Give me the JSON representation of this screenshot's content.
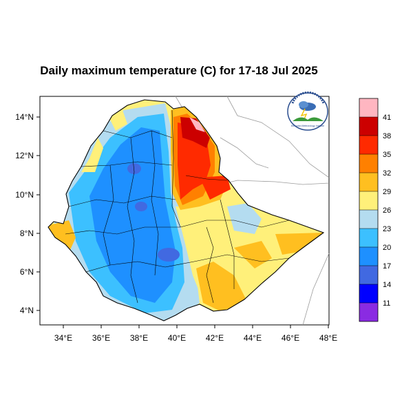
{
  "title": "Daily maximum temperature (C) for 17-18 Jul 2025",
  "map": {
    "lon_ticks": [
      "34°E",
      "36°E",
      "38°E",
      "40°E",
      "42°E",
      "44°E",
      "46°E",
      "48°E"
    ],
    "lat_ticks": [
      "14°N",
      "12°N",
      "10°N",
      "8°N",
      "6°N",
      "4°N"
    ],
    "lon_range": [
      32.8,
      48.2
    ],
    "lat_range": [
      3.2,
      15.0
    ]
  },
  "colorbar": {
    "labels": [
      "41",
      "38",
      "35",
      "32",
      "29",
      "26",
      "23",
      "20",
      "17",
      "14",
      "11"
    ],
    "colors": [
      "#ffb6c1",
      "#cc0000",
      "#ff2a00",
      "#ff8000",
      "#ffbf20",
      "#fff07a",
      "#b4dcf0",
      "#3cc0ff",
      "#1e90ff",
      "#4169e1",
      "#0000ff",
      "#8a2be2"
    ]
  },
  "logo": {
    "icon": "ethiopian-meteorology-institute-logo",
    "text": "Ethiopian Meteorology Institute"
  }
}
